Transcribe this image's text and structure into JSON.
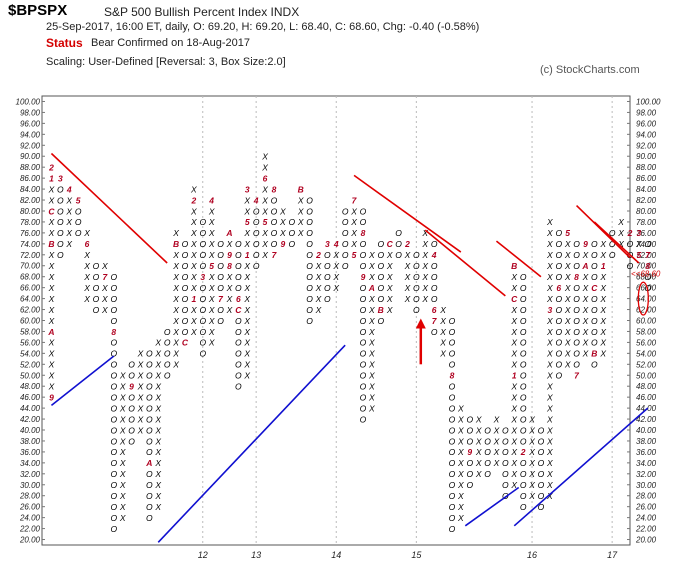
{
  "header": {
    "symbol": "$BPSPX",
    "name": "S&P 500 Bullish Percent Index  INDX",
    "quote": "25-Sep-2017, 16:00 ET, daily, O: 69.20, H: 69.20, L: 68.40, C: 68.60, Chg: -0.40 (-0.58%)",
    "status_label": "Status",
    "status_value": "Bear Confirmed on 18-Aug-2017",
    "scaling": "Scaling: User-Defined [Reversal: 3, Box Size:2.0]",
    "copyright": "(c) StockCharts.com"
  },
  "colors": {
    "x_mark": "#000000",
    "o_mark": "#000000",
    "month_marker": "#b00020",
    "resistance_line": "#e00000",
    "support_line": "#1010d0",
    "last_price": "#d40000"
  },
  "chart_data": {
    "type": "point-and-figure",
    "box_size": 2.0,
    "reversal": 3,
    "ylim": [
      20,
      100
    ],
    "last_price_label": "<<68.60",
    "year_labels": [
      {
        "col": 17,
        "label": "12"
      },
      {
        "col": 23,
        "label": "13"
      },
      {
        "col": 32,
        "label": "14"
      },
      {
        "col": 41,
        "label": "15"
      },
      {
        "col": 54,
        "label": "16"
      },
      {
        "col": 63,
        "label": "17"
      }
    ],
    "columns": [
      {
        "type": "X",
        "low": 46,
        "high": 88,
        "marks": {
          "46": "9",
          "58": "A",
          "74": "B",
          "80": "C",
          "86": "1",
          "88": "2"
        }
      },
      {
        "type": "O",
        "low": 72,
        "high": 86,
        "marks": {
          "86": "3"
        }
      },
      {
        "type": "X",
        "low": 74,
        "high": 84,
        "marks": {
          "84": "4"
        }
      },
      {
        "type": "O",
        "low": 76,
        "high": 82,
        "marks": {
          "82": "5"
        }
      },
      {
        "type": "X",
        "low": 64,
        "high": 76,
        "marks": {
          "74": "6"
        }
      },
      {
        "type": "O",
        "low": 62,
        "high": 70,
        "marks": {}
      },
      {
        "type": "X",
        "low": 62,
        "high": 70,
        "marks": {
          "68": "7"
        }
      },
      {
        "type": "O",
        "low": 22,
        "high": 68,
        "marks": {
          "58": "8"
        }
      },
      {
        "type": "X",
        "low": 24,
        "high": 50,
        "marks": {}
      },
      {
        "type": "O",
        "low": 38,
        "high": 52,
        "marks": {
          "48": "9"
        }
      },
      {
        "type": "X",
        "low": 40,
        "high": 54,
        "marks": {}
      },
      {
        "type": "O",
        "low": 24,
        "high": 54,
        "marks": {
          "34": "A"
        }
      },
      {
        "type": "X",
        "low": 26,
        "high": 56,
        "marks": {}
      },
      {
        "type": "O",
        "low": 50,
        "high": 58,
        "marks": {}
      },
      {
        "type": "X",
        "low": 52,
        "high": 76,
        "marks": {
          "74": "B"
        }
      },
      {
        "type": "O",
        "low": 56,
        "high": 74,
        "marks": {
          "56": "C"
        }
      },
      {
        "type": "X",
        "low": 58,
        "high": 84,
        "marks": {
          "64": "1",
          "82": "2"
        }
      },
      {
        "type": "O",
        "low": 54,
        "high": 78,
        "marks": {
          "68": "3"
        }
      },
      {
        "type": "X",
        "low": 56,
        "high": 82,
        "marks": {
          "70": "5",
          "82": "4"
        }
      },
      {
        "type": "O",
        "low": 60,
        "high": 74,
        "marks": {
          "64": "7"
        }
      },
      {
        "type": "X",
        "low": 62,
        "high": 76,
        "marks": {
          "70": "8",
          "72": "9",
          "76": "A"
        }
      },
      {
        "type": "O",
        "low": 48,
        "high": 74,
        "marks": {
          "62": "C",
          "64": "6"
        }
      },
      {
        "type": "X",
        "low": 50,
        "high": 84,
        "marks": {
          "72": "1",
          "78": "5",
          "84": "3"
        }
      },
      {
        "type": "O",
        "low": 70,
        "high": 82,
        "marks": {
          "82": "4"
        }
      },
      {
        "type": "X",
        "low": 72,
        "high": 90,
        "marks": {
          "78": "5",
          "86": "6"
        }
      },
      {
        "type": "O",
        "low": 72,
        "high": 84,
        "marks": {
          "72": "7",
          "84": "8"
        }
      },
      {
        "type": "X",
        "low": 74,
        "high": 80,
        "marks": {
          "74": "9"
        }
      },
      {
        "type": "O",
        "low": 74,
        "high": 78,
        "marks": {}
      },
      {
        "type": "X",
        "low": 76,
        "high": 84,
        "marks": {
          "84": "B"
        }
      },
      {
        "type": "O",
        "low": 60,
        "high": 82,
        "marks": {}
      },
      {
        "type": "X",
        "low": 62,
        "high": 72,
        "marks": {
          "72": "2"
        }
      },
      {
        "type": "O",
        "low": 64,
        "high": 74,
        "marks": {
          "74": "3"
        }
      },
      {
        "type": "X",
        "low": 66,
        "high": 74,
        "marks": {
          "74": "4"
        }
      },
      {
        "type": "O",
        "low": 70,
        "high": 80,
        "marks": {}
      },
      {
        "type": "X",
        "low": 72,
        "high": 82,
        "marks": {
          "72": "5",
          "82": "7"
        }
      },
      {
        "type": "O",
        "low": 42,
        "high": 80,
        "marks": {
          "68": "9",
          "76": "8"
        }
      },
      {
        "type": "X",
        "low": 44,
        "high": 72,
        "marks": {
          "66": "A"
        }
      },
      {
        "type": "O",
        "low": 60,
        "high": 74,
        "marks": {
          "62": "B"
        }
      },
      {
        "type": "X",
        "low": 62,
        "high": 74,
        "marks": {
          "74": "C"
        }
      },
      {
        "type": "O",
        "low": 72,
        "high": 76,
        "marks": {}
      },
      {
        "type": "X",
        "low": 64,
        "high": 74,
        "marks": {
          "74": "2"
        }
      },
      {
        "type": "O",
        "low": 62,
        "high": 72,
        "marks": {}
      },
      {
        "type": "X",
        "low": 64,
        "high": 76,
        "marks": {}
      },
      {
        "type": "O",
        "low": 58,
        "high": 74,
        "marks": {
          "60": "7",
          "62": "6",
          "72": "4"
        }
      },
      {
        "type": "X",
        "low": 54,
        "high": 62,
        "marks": {}
      },
      {
        "type": "O",
        "low": 22,
        "high": 60,
        "marks": {
          "50": "8"
        }
      },
      {
        "type": "X",
        "low": 24,
        "high": 44,
        "marks": {}
      },
      {
        "type": "O",
        "low": 30,
        "high": 42,
        "marks": {
          "36": "9"
        }
      },
      {
        "type": "X",
        "low": 32,
        "high": 42,
        "marks": {}
      },
      {
        "type": "O",
        "low": 32,
        "high": 40,
        "marks": {}
      },
      {
        "type": "X",
        "low": 34,
        "high": 42,
        "marks": {}
      },
      {
        "type": "O",
        "low": 28,
        "high": 40,
        "marks": {}
      },
      {
        "type": "X",
        "low": 30,
        "high": 70,
        "marks": {
          "70": "B",
          "64": "C",
          "50": "1"
        }
      },
      {
        "type": "O",
        "low": 26,
        "high": 68,
        "marks": {
          "36": "2"
        }
      },
      {
        "type": "X",
        "low": 28,
        "high": 42,
        "marks": {}
      },
      {
        "type": "O",
        "low": 26,
        "high": 40,
        "marks": {}
      },
      {
        "type": "X",
        "low": 28,
        "high": 78,
        "marks": {
          "62": "3"
        }
      },
      {
        "type": "O",
        "low": 50,
        "high": 76,
        "marks": {
          "66": "6"
        }
      },
      {
        "type": "X",
        "low": 52,
        "high": 76,
        "marks": {
          "76": "5"
        }
      },
      {
        "type": "O",
        "low": 50,
        "high": 74,
        "marks": {
          "50": "7",
          "68": "8"
        }
      },
      {
        "type": "X",
        "low": 54,
        "high": 74,
        "marks": {
          "74": "9",
          "70": "A"
        }
      },
      {
        "type": "O",
        "low": 52,
        "high": 74,
        "marks": {
          "54": "B",
          "66": "C"
        }
      },
      {
        "type": "X",
        "low": 54,
        "high": 74,
        "marks": {
          "70": "1"
        }
      },
      {
        "type": "O",
        "low": 72,
        "high": 76,
        "marks": {}
      },
      {
        "type": "X",
        "low": 74,
        "high": 78,
        "marks": {}
      },
      {
        "type": "O",
        "low": 70,
        "high": 76,
        "marks": {
          "76": "2"
        }
      },
      {
        "type": "X",
        "low": 72,
        "high": 76,
        "marks": {
          "72": "5",
          "76": "3"
        }
      },
      {
        "type": "O",
        "low": 66,
        "high": 74,
        "marks": {
          "72": "7",
          "70": "8"
        }
      }
    ],
    "trendlines": [
      {
        "kind": "resistance",
        "points": [
          [
            0,
            90.5
          ],
          [
            13,
            70.5
          ]
        ]
      },
      {
        "kind": "resistance",
        "points": [
          [
            34,
            86.5
          ],
          [
            46,
            72.5
          ]
        ]
      },
      {
        "kind": "resistance",
        "points": [
          [
            42,
            76.5
          ],
          [
            51,
            64.5
          ]
        ]
      },
      {
        "kind": "resistance",
        "points": [
          [
            50,
            74.5
          ],
          [
            55,
            68
          ]
        ]
      },
      {
        "kind": "resistance",
        "points": [
          [
            59,
            81
          ],
          [
            65,
            71.5
          ]
        ]
      },
      {
        "kind": "resistance",
        "points": [
          [
            61,
            78
          ],
          [
            66,
            70.5
          ]
        ]
      },
      {
        "kind": "support",
        "points": [
          [
            0,
            44.5
          ],
          [
            7,
            53.5
          ]
        ]
      },
      {
        "kind": "support",
        "points": [
          [
            12,
            19.5
          ],
          [
            33,
            55.5
          ]
        ]
      },
      {
        "kind": "support",
        "points": [
          [
            46.5,
            22.5
          ],
          [
            52.5,
            29.5
          ]
        ]
      },
      {
        "kind": "support",
        "points": [
          [
            52,
            22.5
          ],
          [
            67,
            44
          ]
        ]
      }
    ],
    "arrow": {
      "col": 41.5,
      "from": 52,
      "to": 60
    },
    "circles": [
      {
        "col": 66.5,
        "low": 62,
        "high": 66
      }
    ]
  }
}
